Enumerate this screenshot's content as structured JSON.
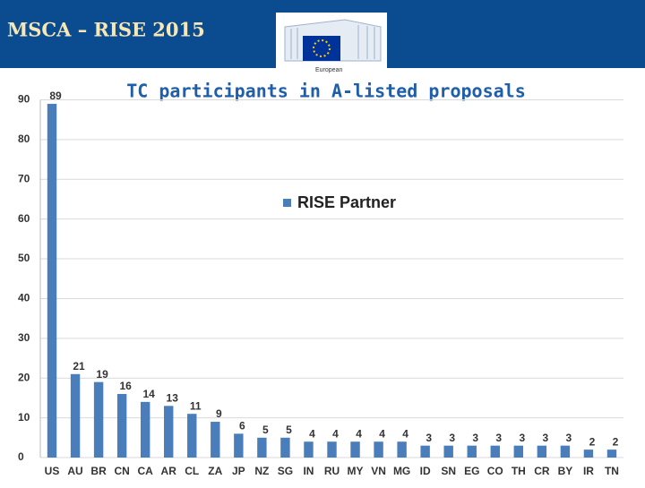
{
  "header": {
    "title": "MSCA – RISE 2015",
    "logo_text": "European"
  },
  "chart_data": {
    "type": "bar",
    "title": "TC participants in A-listed proposals",
    "categories": [
      "US",
      "AU",
      "BR",
      "CN",
      "CA",
      "AR",
      "CL",
      "ZA",
      "JP",
      "NZ",
      "SG",
      "IN",
      "RU",
      "MY",
      "VN",
      "MG",
      "ID",
      "SN",
      "EG",
      "CO",
      "TH",
      "CR",
      "BY",
      "IR",
      "TN"
    ],
    "series": [
      {
        "name": "RISE Partner",
        "color": "#4a7ebb",
        "values": [
          89,
          21,
          19,
          16,
          14,
          13,
          11,
          9,
          6,
          5,
          5,
          4,
          4,
          4,
          4,
          4,
          3,
          3,
          3,
          3,
          3,
          3,
          3,
          2,
          2
        ]
      }
    ],
    "ylim": [
      0,
      90
    ],
    "yticks": [
      0,
      10,
      20,
      30,
      40,
      50,
      60,
      70,
      80,
      90
    ],
    "grid": true
  }
}
